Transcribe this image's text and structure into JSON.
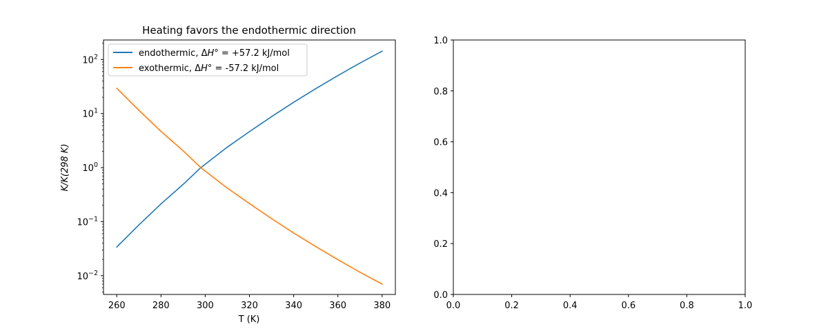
{
  "chart_data": [
    {
      "type": "line",
      "title": "Heating favors the endothermic direction",
      "xlabel": "T (K)",
      "ylabel": "K/K(298 K)",
      "xlim": [
        254,
        386
      ],
      "ylim": [
        0.0045,
        230
      ],
      "yscale": "log",
      "xticks": [
        "260",
        "280",
        "300",
        "320",
        "340",
        "360",
        "380"
      ],
      "yticks": [
        {
          "base": "10",
          "exp": "−2"
        },
        {
          "base": "10",
          "exp": "−1"
        },
        {
          "base": "10",
          "exp": "0"
        },
        {
          "base": "10",
          "exp": "1"
        },
        {
          "base": "10",
          "exp": "2"
        }
      ],
      "grid": false,
      "legend_position": "upper-left",
      "series": [
        {
          "name": "endothermic, ΔH° = +57.2 kJ/mol",
          "legend_prefix": "endothermic, Δ",
          "legend_symbol": "H",
          "legend_suffix": "° = +57.2 kJ/mol",
          "color": "#1f77b4",
          "dH_kJ_per_mol": 57.2,
          "x": [
            260,
            270,
            280,
            290,
            298,
            310,
            320,
            330,
            340,
            350,
            360,
            370,
            380
          ],
          "y": [
            0.034,
            0.087,
            0.213,
            0.489,
            1.0,
            2.4,
            4.64,
            8.76,
            16.2,
            28.9,
            50.5,
            86.1,
            143
          ]
        },
        {
          "name": "exothermic, ΔH° = -57.2 kJ/mol",
          "legend_prefix": "exothermic, Δ",
          "legend_symbol": "H",
          "legend_suffix": "° = -57.2 kJ/mol",
          "color": "#ff7f0e",
          "dH_kJ_per_mol": -57.2,
          "x": [
            260,
            270,
            280,
            290,
            298,
            310,
            320,
            330,
            340,
            350,
            360,
            370,
            380
          ],
          "y": [
            29.4,
            11.5,
            4.69,
            2.05,
            1.0,
            0.417,
            0.216,
            0.114,
            0.0617,
            0.0346,
            0.0198,
            0.0116,
            0.00699
          ]
        }
      ]
    },
    {
      "type": "line",
      "title": "",
      "xlabel": "",
      "ylabel": "",
      "xlim": [
        0,
        1
      ],
      "ylim": [
        0,
        1
      ],
      "xticks": [
        "0.0",
        "0.2",
        "0.4",
        "0.6",
        "0.8",
        "1.0"
      ],
      "yticks": [
        "0.0",
        "0.2",
        "0.4",
        "0.6",
        "0.8",
        "1.0"
      ],
      "grid": false,
      "series": []
    }
  ]
}
